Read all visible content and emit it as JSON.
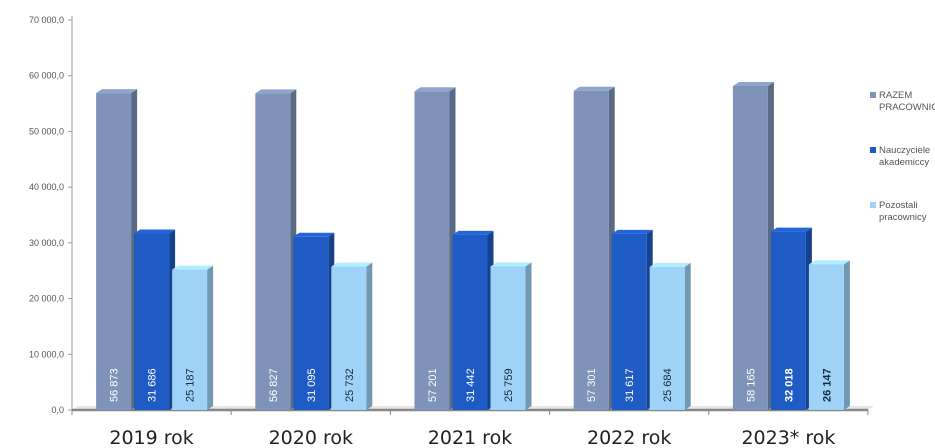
{
  "chart_data": {
    "type": "bar",
    "title": "",
    "xlabel": "",
    "ylabel": "",
    "ylim": [
      0,
      70000
    ],
    "y_ticks": [
      "0,0",
      "10 000,0",
      "20 000,0",
      "30 000,0",
      "40 000,0",
      "50 000,0",
      "60 000,0",
      "70 000,0"
    ],
    "categories": [
      "2019 rok",
      "2020 rok",
      "2021 rok",
      "2022 rok",
      "2023* rok"
    ],
    "series": [
      {
        "name": "RAZEM PRACOWNICY",
        "legend_lines": [
          "RAZEM",
          "PRACOWNICY"
        ],
        "color": "#7f93b8",
        "values": [
          56873,
          56827,
          57201,
          57301,
          58165
        ],
        "labels": [
          "56 873",
          "56 827",
          "57 201",
          "57 301",
          "58 165"
        ]
      },
      {
        "name": "Nauczyciele akademiccy",
        "legend_lines": [
          "Nauczyciele",
          "akademiccy"
        ],
        "color": "#1f5bc4",
        "values": [
          31686,
          31095,
          31442,
          31617,
          32018
        ],
        "labels": [
          "31 686",
          "31 095",
          "31 442",
          "31 617",
          "32 018"
        ]
      },
      {
        "name": "Pozostali pracownicy",
        "legend_lines": [
          "Pozostali",
          "pracownicy"
        ],
        "color": "#9ed3f7",
        "values": [
          25187,
          25732,
          25759,
          25684,
          26147
        ],
        "labels": [
          "25 187",
          "25 732",
          "25 759",
          "25 684",
          "26 147"
        ]
      }
    ],
    "grid": false,
    "legend_position": "right",
    "bar_style": "3d"
  }
}
